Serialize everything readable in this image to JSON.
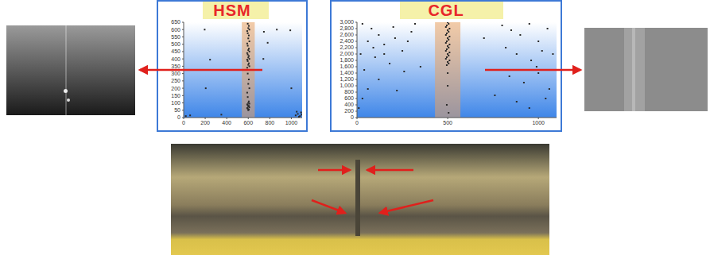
{
  "chart_data": [
    {
      "type": "scatter",
      "title": "HSM",
      "color": "#2a2a2a",
      "xlim": [
        0,
        1100
      ],
      "ylim": [
        0,
        650
      ],
      "xticks": [
        0,
        200,
        400,
        600,
        800,
        1000
      ],
      "yticks": [
        0,
        50,
        100,
        150,
        200,
        250,
        300,
        350,
        400,
        450,
        500,
        550,
        600,
        650
      ],
      "highlight": [
        540,
        660
      ],
      "x": [
        595,
        605,
        600,
        610,
        590,
        595,
        605,
        600,
        610,
        590,
        595,
        605,
        600,
        610,
        590,
        595,
        605,
        600,
        610,
        590,
        595,
        605,
        600,
        610,
        590,
        595,
        605,
        600,
        610,
        590,
        595,
        605,
        600,
        610,
        590,
        595,
        605,
        600,
        610,
        590,
        595,
        605,
        600,
        195,
        205,
        245,
        350,
        740,
        745,
        780,
        865,
        990,
        1000,
        20,
        60,
        1040,
        1060,
        1080,
        1090,
        1070,
        1050,
        1095
      ],
      "values": [
        640,
        625,
        610,
        600,
        590,
        575,
        560,
        540,
        520,
        505,
        490,
        470,
        460,
        450,
        440,
        430,
        420,
        410,
        400,
        395,
        385,
        370,
        360,
        350,
        340,
        300,
        260,
        230,
        200,
        170,
        140,
        110,
        100,
        95,
        90,
        85,
        80,
        75,
        70,
        65,
        60,
        55,
        50,
        600,
        200,
        395,
        20,
        400,
        585,
        510,
        600,
        595,
        200,
        10,
        15,
        15,
        25,
        10,
        35,
        5,
        40,
        20
      ]
    },
    {
      "type": "scatter",
      "title": "CGL",
      "color": "#2a2a2a",
      "xlim": [
        0,
        1100
      ],
      "ylim": [
        0,
        3000
      ],
      "xticks": [
        0,
        500,
        1000
      ],
      "yticks": [
        0,
        200,
        400,
        600,
        800,
        {
          "value": 1000,
          "label": "1,000"
        },
        {
          "value": 1200,
          "label": "1,200"
        },
        {
          "value": 1400,
          "label": "1,400"
        },
        {
          "value": 1600,
          "label": "1,600"
        },
        {
          "value": 1800,
          "label": "1,800"
        },
        {
          "value": 2000,
          "label": "2,000"
        },
        {
          "value": 2200,
          "label": "2,200"
        },
        {
          "value": 2400,
          "label": "2,400"
        },
        {
          "value": 2600,
          "label": "2,600"
        },
        {
          "value": 2800,
          "label": "2,800"
        },
        {
          "value": 3000,
          "label": "3,000"
        }
      ],
      "highlight": [
        430,
        570
      ],
      "x": [
        495,
        505,
        500,
        510,
        490,
        495,
        505,
        500,
        510,
        490,
        495,
        505,
        500,
        510,
        490,
        495,
        505,
        500,
        510,
        490,
        495,
        505,
        500,
        510,
        490,
        495,
        505,
        500,
        500,
        500,
        495,
        505,
        30,
        80,
        120,
        60,
        150,
        200,
        250,
        20,
        100,
        300,
        180,
        40,
        260,
        120,
        60,
        220,
        30,
        150,
        90,
        280,
        350,
        10,
        320,
        210,
        800,
        850,
        900,
        950,
        1000,
        1050,
        820,
        880,
        960,
        1020,
        780,
        840,
        920,
        1000,
        1060,
        760,
        880,
        950,
        1040,
        700,
        1080,
        990
      ],
      "values": [
        1650,
        1700,
        1750,
        1800,
        1850,
        1900,
        1950,
        2000,
        2050,
        2100,
        2150,
        2200,
        2250,
        2300,
        2350,
        2400,
        2450,
        2500,
        2550,
        2600,
        2650,
        2700,
        2750,
        2800,
        2850,
        2900,
        2950,
        3000,
        1400,
        1000,
        400,
        150,
        2950,
        2800,
        2600,
        2400,
        2300,
        2850,
        2100,
        2000,
        1900,
        2700,
        1700,
        1500,
        1450,
        1200,
        900,
        850,
        600,
        2000,
        2200,
        2400,
        1600,
        300,
        2950,
        2500,
        2900,
        2750,
        2600,
        2950,
        2400,
        2800,
        2200,
        2000,
        1800,
        2100,
        1500,
        1300,
        1100,
        1400,
        900,
        700,
        500,
        300,
        600,
        2500,
        2000,
        1600
      ]
    }
  ]
}
